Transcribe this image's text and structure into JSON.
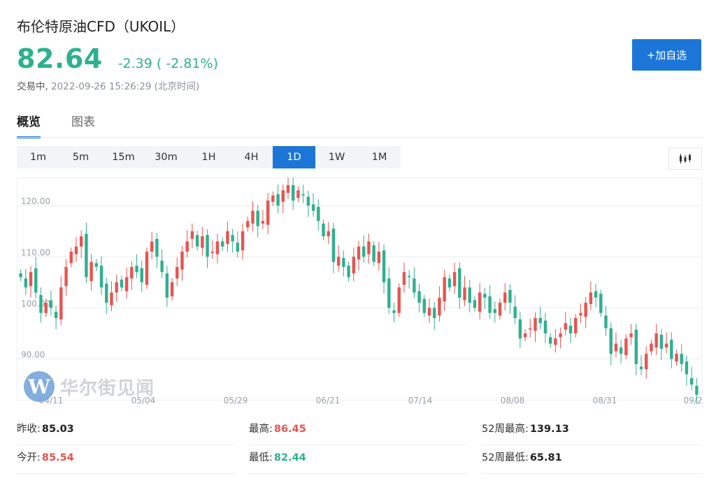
{
  "header": {
    "title": "布伦特原油CFD（UKOIL）",
    "price": "82.64",
    "change": "-2.39 ( -2.81%)",
    "status_state": "交易中,",
    "status_time": "2022-09-26 15:26:29 (北京时间)",
    "add_button": "+加自选"
  },
  "tabs": [
    {
      "label": "概览",
      "active": true
    },
    {
      "label": "图表",
      "active": false
    }
  ],
  "periods": [
    "1m",
    "5m",
    "15m",
    "30m",
    "1H",
    "4H",
    "1D",
    "1W",
    "1M"
  ],
  "active_period": "1D",
  "watermark": {
    "logo": "W",
    "text": "华尔街见闻"
  },
  "stats": {
    "prev_close_label": "昨收:",
    "prev_close": "85.03",
    "high_label": "最高:",
    "high": "86.45",
    "high52_label": "52周最高:",
    "high52": "139.13",
    "open_label": "今开:",
    "open": "85.54",
    "low_label": "最低:",
    "low": "82.44",
    "low52_label": "52周最低:",
    "low52": "65.81"
  },
  "colors": {
    "up": "#e9534f",
    "down": "#2eb08f",
    "accent": "#1c76d8"
  },
  "chart_data": {
    "type": "candlestick",
    "y_ticks": [
      "120.00",
      "110.00",
      "100.00",
      "90.00"
    ],
    "x_ticks": [
      "04/11",
      "05/04",
      "05/29",
      "06/21",
      "07/14",
      "08/08",
      "08/31",
      "09/2"
    ],
    "ylim": [
      82,
      125.5
    ],
    "grid": true,
    "closes": [
      106,
      104,
      107,
      103,
      99,
      101,
      100,
      98,
      104,
      108,
      111,
      112,
      114,
      106,
      109,
      108,
      104,
      101,
      103,
      105,
      104,
      106,
      108,
      107,
      105,
      111,
      113,
      110,
      107,
      102,
      105,
      108,
      111,
      113,
      115,
      112,
      114,
      110,
      111,
      113,
      112,
      115,
      113,
      111,
      115,
      117,
      119,
      116,
      117,
      121,
      122,
      120,
      123,
      124,
      121,
      123,
      122,
      120,
      119,
      117,
      114,
      115,
      109,
      110,
      108,
      106,
      110,
      112,
      110,
      113,
      109,
      111,
      105,
      100,
      99,
      104,
      107,
      106,
      103,
      101,
      99,
      100,
      98,
      102,
      106,
      104,
      107,
      102,
      104,
      101,
      100,
      103,
      102,
      99,
      99,
      101,
      103,
      101,
      98,
      94,
      95,
      96,
      98,
      97,
      95,
      93,
      94,
      95,
      97,
      95,
      98,
      99,
      101,
      103,
      102,
      99,
      96,
      91,
      93,
      91,
      94,
      95,
      89,
      88,
      91,
      93,
      95,
      92,
      93,
      90,
      91,
      89,
      87,
      85,
      83
    ],
    "series_note": "daily OHLC, up candles red, down candles green"
  }
}
